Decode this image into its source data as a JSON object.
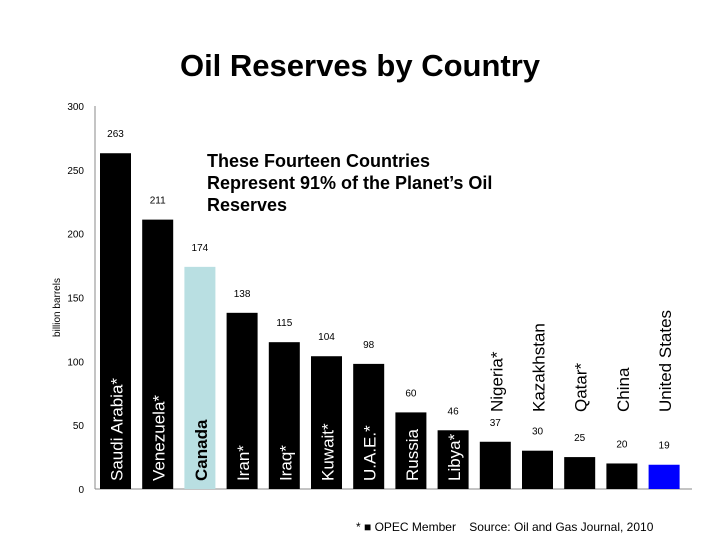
{
  "chart_data": {
    "type": "bar",
    "title": "Oil Reserves by Country",
    "ylabel": "billion barrels",
    "xlabel": "",
    "ylim": [
      0,
      300
    ],
    "yticks": [
      0,
      50,
      100,
      150,
      200,
      250,
      300
    ],
    "grid": false,
    "categories": [
      "Saudi Arabia*",
      "Venezuela*",
      "Canada",
      "Iran*",
      "Iraq*",
      "Kuwait*",
      "U.A.E.*",
      "Russia",
      "Libya*",
      "Nigeria*",
      "Kazakhstan",
      "Qatar*",
      "China",
      "United States"
    ],
    "values": [
      263,
      211,
      174,
      138,
      115,
      104,
      98,
      60,
      46,
      37,
      30,
      25,
      20,
      19
    ],
    "bar_colors": [
      "#000000",
      "#000000",
      "#b9dfe2",
      "#000000",
      "#000000",
      "#000000",
      "#000000",
      "#000000",
      "#000000",
      "#000000",
      "#000000",
      "#000000",
      "#000000",
      "#0000ff"
    ],
    "annotation": "These Fourteen Countries Represent 91% of the Planet’s Oil Reserves",
    "footnote": "* ■ OPEC Member    Source: Oil and Gas Journal, 2010"
  }
}
